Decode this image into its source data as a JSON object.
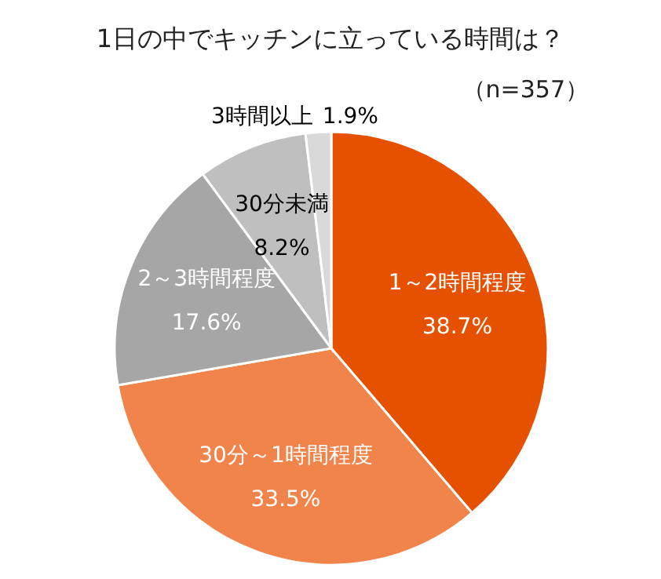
{
  "chart_data": {
    "type": "pie",
    "title": "1日の中でキッチンに立っている時間は？",
    "subtitle": "（n=357）",
    "categories": [
      "1～2時間程度",
      "30分～1時間程度",
      "2～3時間程度",
      "30分未満",
      "3時間以上"
    ],
    "values": [
      38.7,
      33.5,
      17.6,
      8.2,
      1.9
    ],
    "colors": [
      "#e65100",
      "#f0844a",
      "#a6a6a6",
      "#bfbfbf",
      "#d9d9d9"
    ],
    "value_labels": [
      "38.7%",
      "33.5%",
      "17.6%",
      "8.2%",
      "1.9%"
    ]
  }
}
